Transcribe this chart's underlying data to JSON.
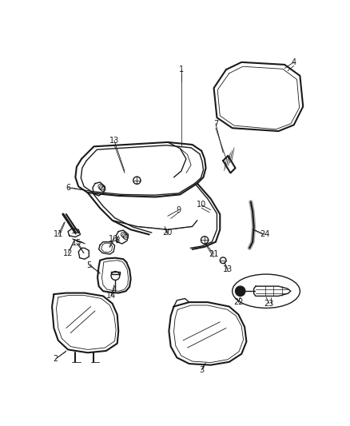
{
  "bg_color": "#ffffff",
  "fig_width": 4.38,
  "fig_height": 5.33,
  "dpi": 100,
  "line_color": "#1a1a1a",
  "label_color": "#1a1a1a",
  "label_fontsize": 7.0
}
